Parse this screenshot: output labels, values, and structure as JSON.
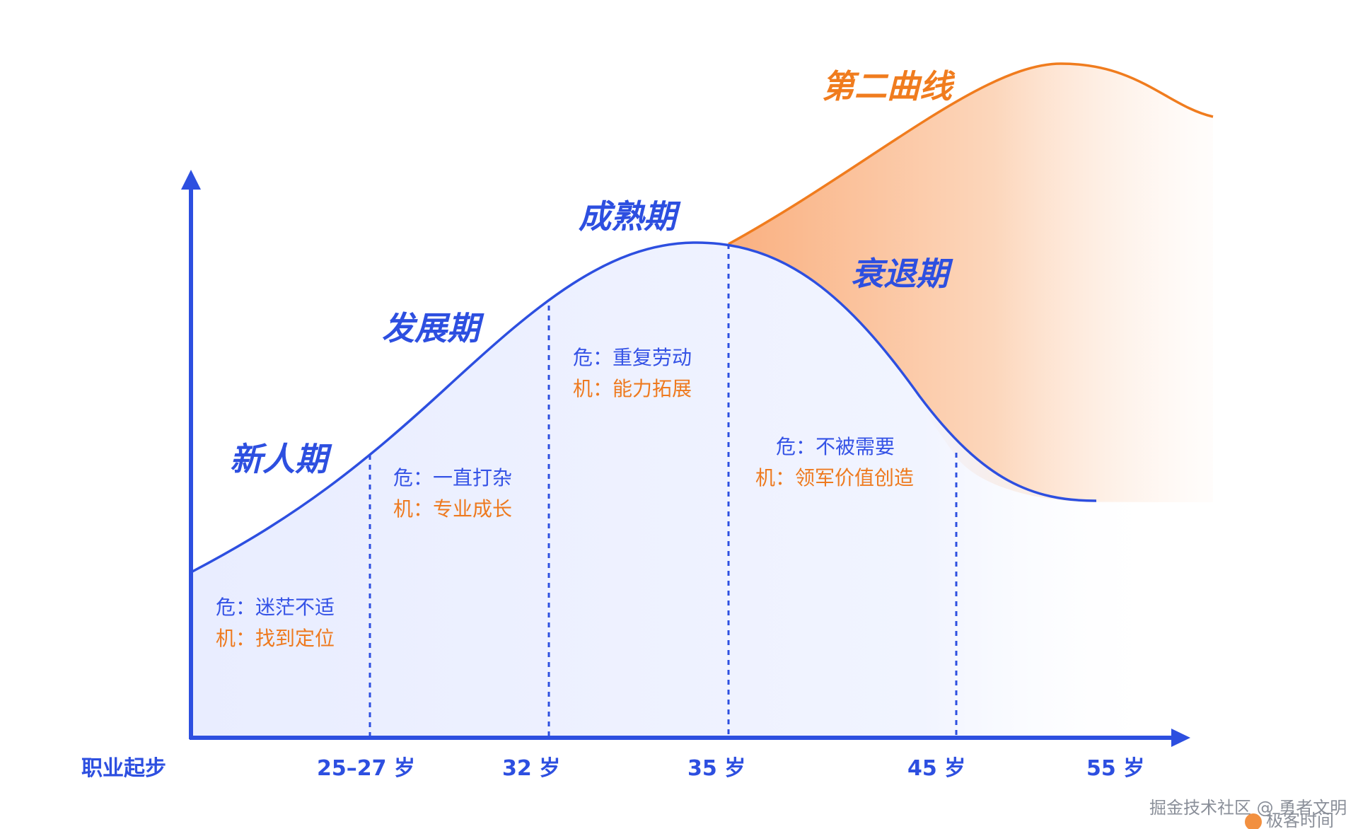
{
  "colors": {
    "blue": "#2d4fe0",
    "orange": "#f07c1e",
    "risk_text": "#3553e6",
    "opportunity_text": "#ee7a1f"
  },
  "phases": {
    "newcomer": "新人期",
    "growth": "发展期",
    "mature": "成熟期",
    "decline": "衰退期",
    "second_curve": "第二曲线"
  },
  "stages": [
    {
      "risk": "危：迷茫不适",
      "opportunity": "机：找到定位"
    },
    {
      "risk": "危：一直打杂",
      "opportunity": "机：专业成长"
    },
    {
      "risk": "危：重复劳动",
      "opportunity": "机：能力拓展"
    },
    {
      "risk": "危：不被需要",
      "opportunity": "机：领军价值创造"
    }
  ],
  "x_axis_labels": [
    "职业起步",
    "25–27 岁",
    "32 岁",
    "35 岁",
    "45 岁",
    "55 岁"
  ],
  "watermark": {
    "line1": "掘金技术社区 @ 勇者文明",
    "line2": "极客时间"
  }
}
